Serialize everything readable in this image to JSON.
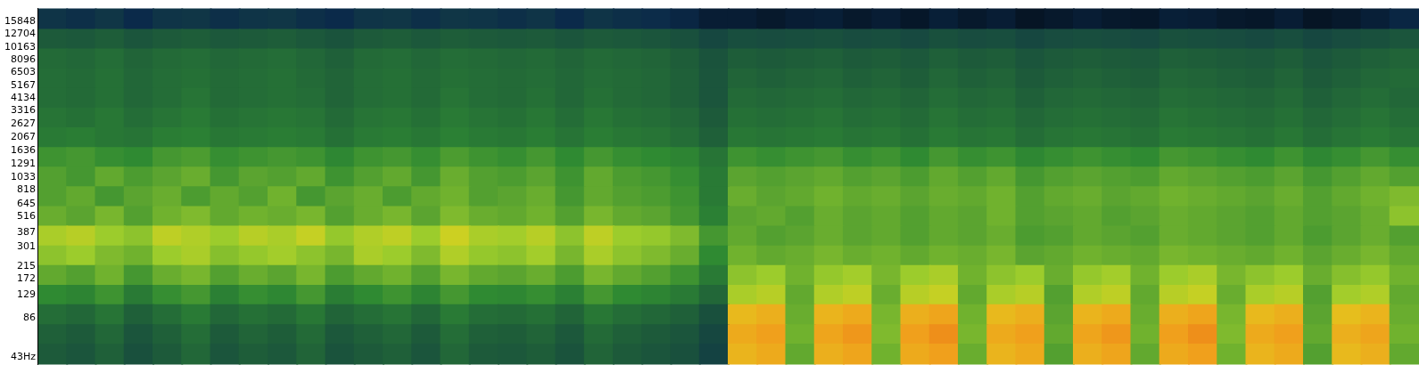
{
  "chart_data": {
    "type": "heatmap",
    "categories": [
      null,
      null,
      null,
      null,
      null,
      null,
      null,
      null,
      null,
      null,
      null,
      null,
      null,
      null,
      null,
      null,
      null,
      null,
      null,
      null,
      null,
      null,
      null,
      null,
      null,
      null,
      null,
      null,
      null,
      null,
      null,
      null,
      null,
      null,
      null,
      null,
      null,
      null,
      null,
      null,
      null,
      null,
      null,
      null,
      null,
      null,
      null,
      null
    ],
    "y_edges": [
      38,
      54,
      76,
      108,
      152,
      215,
      304,
      430,
      608,
      860,
      1216,
      1720,
      2432,
      3440,
      4864,
      6880,
      9728,
      13760,
      20000
    ],
    "ylim": [
      38,
      20000
    ],
    "yticks": [
      {
        "value": 43,
        "label": "43Hz"
      },
      86,
      129,
      172,
      215,
      301,
      387,
      516,
      645,
      818,
      1033,
      1291,
      1636,
      2067,
      2627,
      3316,
      4134,
      5167,
      6503,
      8096,
      10163,
      12704,
      15848
    ],
    "log": "y",
    "grid": false,
    "tick_labels": "y",
    "zlim": [
      0,
      100
    ],
    "cells": [
      [
        40,
        38,
        42,
        36,
        40,
        44,
        38,
        41,
        39,
        43,
        37,
        40,
        42,
        38,
        44,
        40,
        39,
        41,
        37,
        43,
        40,
        38,
        36,
        30,
        86,
        88,
        62,
        87,
        89,
        64,
        88,
        90,
        63,
        86,
        88,
        60,
        87,
        89,
        62,
        88,
        90,
        64,
        86,
        88,
        60,
        85,
        87,
        62
      ],
      [
        42,
        40,
        44,
        38,
        42,
        46,
        40,
        43,
        41,
        45,
        39,
        42,
        44,
        40,
        46,
        42,
        41,
        43,
        39,
        45,
        42,
        40,
        38,
        32,
        88,
        90,
        64,
        89,
        91,
        66,
        90,
        92,
        65,
        88,
        90,
        62,
        89,
        91,
        64,
        90,
        92,
        66,
        88,
        90,
        62,
        87,
        89,
        64
      ],
      [
        46,
        44,
        48,
        42,
        46,
        50,
        44,
        47,
        45,
        49,
        43,
        46,
        48,
        44,
        50,
        46,
        45,
        47,
        43,
        49,
        46,
        44,
        42,
        36,
        85,
        87,
        63,
        86,
        88,
        65,
        87,
        89,
        64,
        85,
        87,
        61,
        86,
        88,
        63,
        87,
        89,
        65,
        85,
        87,
        61,
        84,
        86,
        63
      ],
      [
        55,
        53,
        57,
        50,
        56,
        58,
        52,
        56,
        54,
        58,
        51,
        55,
        57,
        53,
        58,
        55,
        54,
        56,
        52,
        58,
        55,
        53,
        50,
        44,
        72,
        74,
        62,
        73,
        75,
        63,
        74,
        76,
        62,
        72,
        74,
        60,
        73,
        75,
        62,
        74,
        76,
        63,
        72,
        74,
        60,
        71,
        73,
        62
      ],
      [
        62,
        60,
        64,
        58,
        63,
        65,
        60,
        63,
        61,
        65,
        59,
        62,
        64,
        60,
        65,
        62,
        61,
        63,
        59,
        65,
        62,
        60,
        57,
        50,
        68,
        70,
        64,
        69,
        71,
        65,
        70,
        72,
        64,
        68,
        70,
        63,
        69,
        71,
        64,
        70,
        72,
        65,
        68,
        70,
        63,
        67,
        69,
        64
      ],
      [
        68,
        70,
        66,
        64,
        70,
        72,
        67,
        69,
        71,
        68,
        65,
        72,
        70,
        66,
        73,
        69,
        68,
        71,
        65,
        72,
        68,
        66,
        63,
        55,
        64,
        62,
        63,
        65,
        63,
        64,
        62,
        64,
        63,
        65,
        61,
        62,
        64,
        63,
        62,
        65,
        64,
        63,
        62,
        64,
        61,
        63,
        65,
        62
      ],
      [
        72,
        74,
        70,
        68,
        75,
        73,
        70,
        74,
        72,
        76,
        69,
        73,
        75,
        70,
        77,
        72,
        71,
        74,
        68,
        75,
        70,
        69,
        66,
        58,
        62,
        60,
        61,
        63,
        61,
        62,
        60,
        62,
        61,
        63,
        59,
        60,
        62,
        61,
        60,
        63,
        62,
        61,
        60,
        62,
        59,
        61,
        63,
        60
      ],
      [
        63,
        61,
        65,
        60,
        64,
        66,
        62,
        64,
        63,
        65,
        60,
        63,
        65,
        61,
        66,
        63,
        62,
        64,
        60,
        65,
        62,
        61,
        58,
        52,
        61,
        62,
        60,
        63,
        61,
        62,
        60,
        62,
        61,
        64,
        60,
        61,
        62,
        60,
        61,
        63,
        62,
        61,
        60,
        62,
        60,
        61,
        63,
        68
      ],
      [
        60,
        62,
        58,
        61,
        63,
        59,
        62,
        60,
        64,
        58,
        61,
        63,
        59,
        62,
        64,
        60,
        61,
        63,
        58,
        62,
        60,
        59,
        57,
        50,
        63,
        61,
        62,
        64,
        62,
        63,
        61,
        63,
        62,
        64,
        60,
        62,
        63,
        61,
        62,
        64,
        63,
        62,
        61,
        63,
        60,
        62,
        64,
        66
      ],
      [
        60,
        58,
        62,
        59,
        61,
        63,
        58,
        61,
        60,
        62,
        57,
        60,
        62,
        58,
        63,
        60,
        59,
        61,
        57,
        62,
        59,
        58,
        56,
        50,
        61,
        60,
        61,
        62,
        60,
        61,
        59,
        62,
        60,
        62,
        58,
        60,
        61,
        60,
        59,
        62,
        61,
        60,
        59,
        61,
        58,
        60,
        62,
        60
      ],
      [
        57,
        58,
        56,
        55,
        58,
        59,
        56,
        57,
        58,
        57,
        54,
        57,
        58,
        56,
        59,
        57,
        56,
        58,
        55,
        58,
        56,
        55,
        53,
        48,
        57,
        56,
        57,
        58,
        56,
        57,
        55,
        58,
        56,
        57,
        54,
        56,
        57,
        56,
        55,
        58,
        57,
        56,
        55,
        57,
        54,
        56,
        58,
        56
      ],
      [
        50,
        51,
        49,
        48,
        51,
        52,
        49,
        50,
        51,
        50,
        47,
        50,
        51,
        49,
        52,
        50,
        49,
        51,
        48,
        51,
        49,
        48,
        46,
        42,
        49,
        48,
        49,
        50,
        48,
        49,
        47,
        50,
        48,
        49,
        46,
        48,
        49,
        48,
        47,
        50,
        49,
        48,
        47,
        49,
        46,
        48,
        50,
        48
      ],
      [
        48,
        47,
        49,
        46,
        48,
        50,
        47,
        48,
        49,
        48,
        45,
        48,
        49,
        47,
        50,
        48,
        47,
        49,
        46,
        49,
        47,
        46,
        44,
        40,
        47,
        46,
        47,
        48,
        46,
        47,
        45,
        48,
        46,
        47,
        44,
        46,
        47,
        46,
        45,
        48,
        47,
        46,
        45,
        47,
        44,
        46,
        48,
        46
      ],
      [
        46,
        45,
        47,
        44,
        46,
        48,
        45,
        46,
        47,
        46,
        43,
        46,
        47,
        45,
        48,
        46,
        45,
        47,
        44,
        47,
        45,
        44,
        42,
        38,
        45,
        44,
        45,
        46,
        44,
        45,
        43,
        46,
        44,
        45,
        42,
        44,
        45,
        44,
        43,
        46,
        45,
        44,
        43,
        45,
        42,
        44,
        46,
        44
      ],
      [
        46,
        45,
        47,
        44,
        46,
        47,
        45,
        46,
        47,
        45,
        43,
        46,
        47,
        45,
        47,
        46,
        45,
        46,
        44,
        46,
        45,
        44,
        42,
        38,
        43,
        42,
        43,
        44,
        42,
        43,
        41,
        44,
        42,
        43,
        40,
        42,
        43,
        42,
        41,
        44,
        43,
        42,
        41,
        43,
        40,
        42,
        44,
        45
      ],
      [
        45,
        44,
        46,
        43,
        45,
        46,
        44,
        45,
        46,
        44,
        42,
        45,
        46,
        44,
        46,
        45,
        44,
        45,
        43,
        45,
        44,
        43,
        41,
        37,
        41,
        40,
        41,
        42,
        40,
        41,
        39,
        42,
        40,
        41,
        38,
        40,
        41,
        40,
        39,
        42,
        41,
        40,
        39,
        41,
        38,
        40,
        42,
        43
      ],
      [
        40,
        39,
        41,
        38,
        40,
        41,
        39,
        40,
        41,
        39,
        37,
        40,
        41,
        39,
        41,
        40,
        39,
        40,
        38,
        40,
        39,
        38,
        36,
        32,
        35,
        34,
        35,
        36,
        34,
        35,
        33,
        36,
        34,
        35,
        32,
        34,
        35,
        34,
        33,
        36,
        35,
        34,
        33,
        35,
        32,
        34,
        36,
        38
      ],
      [
        24,
        22,
        25,
        20,
        24,
        25,
        22,
        24,
        25,
        22,
        20,
        24,
        25,
        22,
        25,
        24,
        22,
        24,
        20,
        24,
        22,
        21,
        18,
        14,
        14,
        12,
        14,
        15,
        12,
        14,
        11,
        15,
        12,
        14,
        10,
        12,
        14,
        12,
        11,
        15,
        14,
        12,
        11,
        14,
        10,
        12,
        15,
        18
      ]
    ]
  }
}
